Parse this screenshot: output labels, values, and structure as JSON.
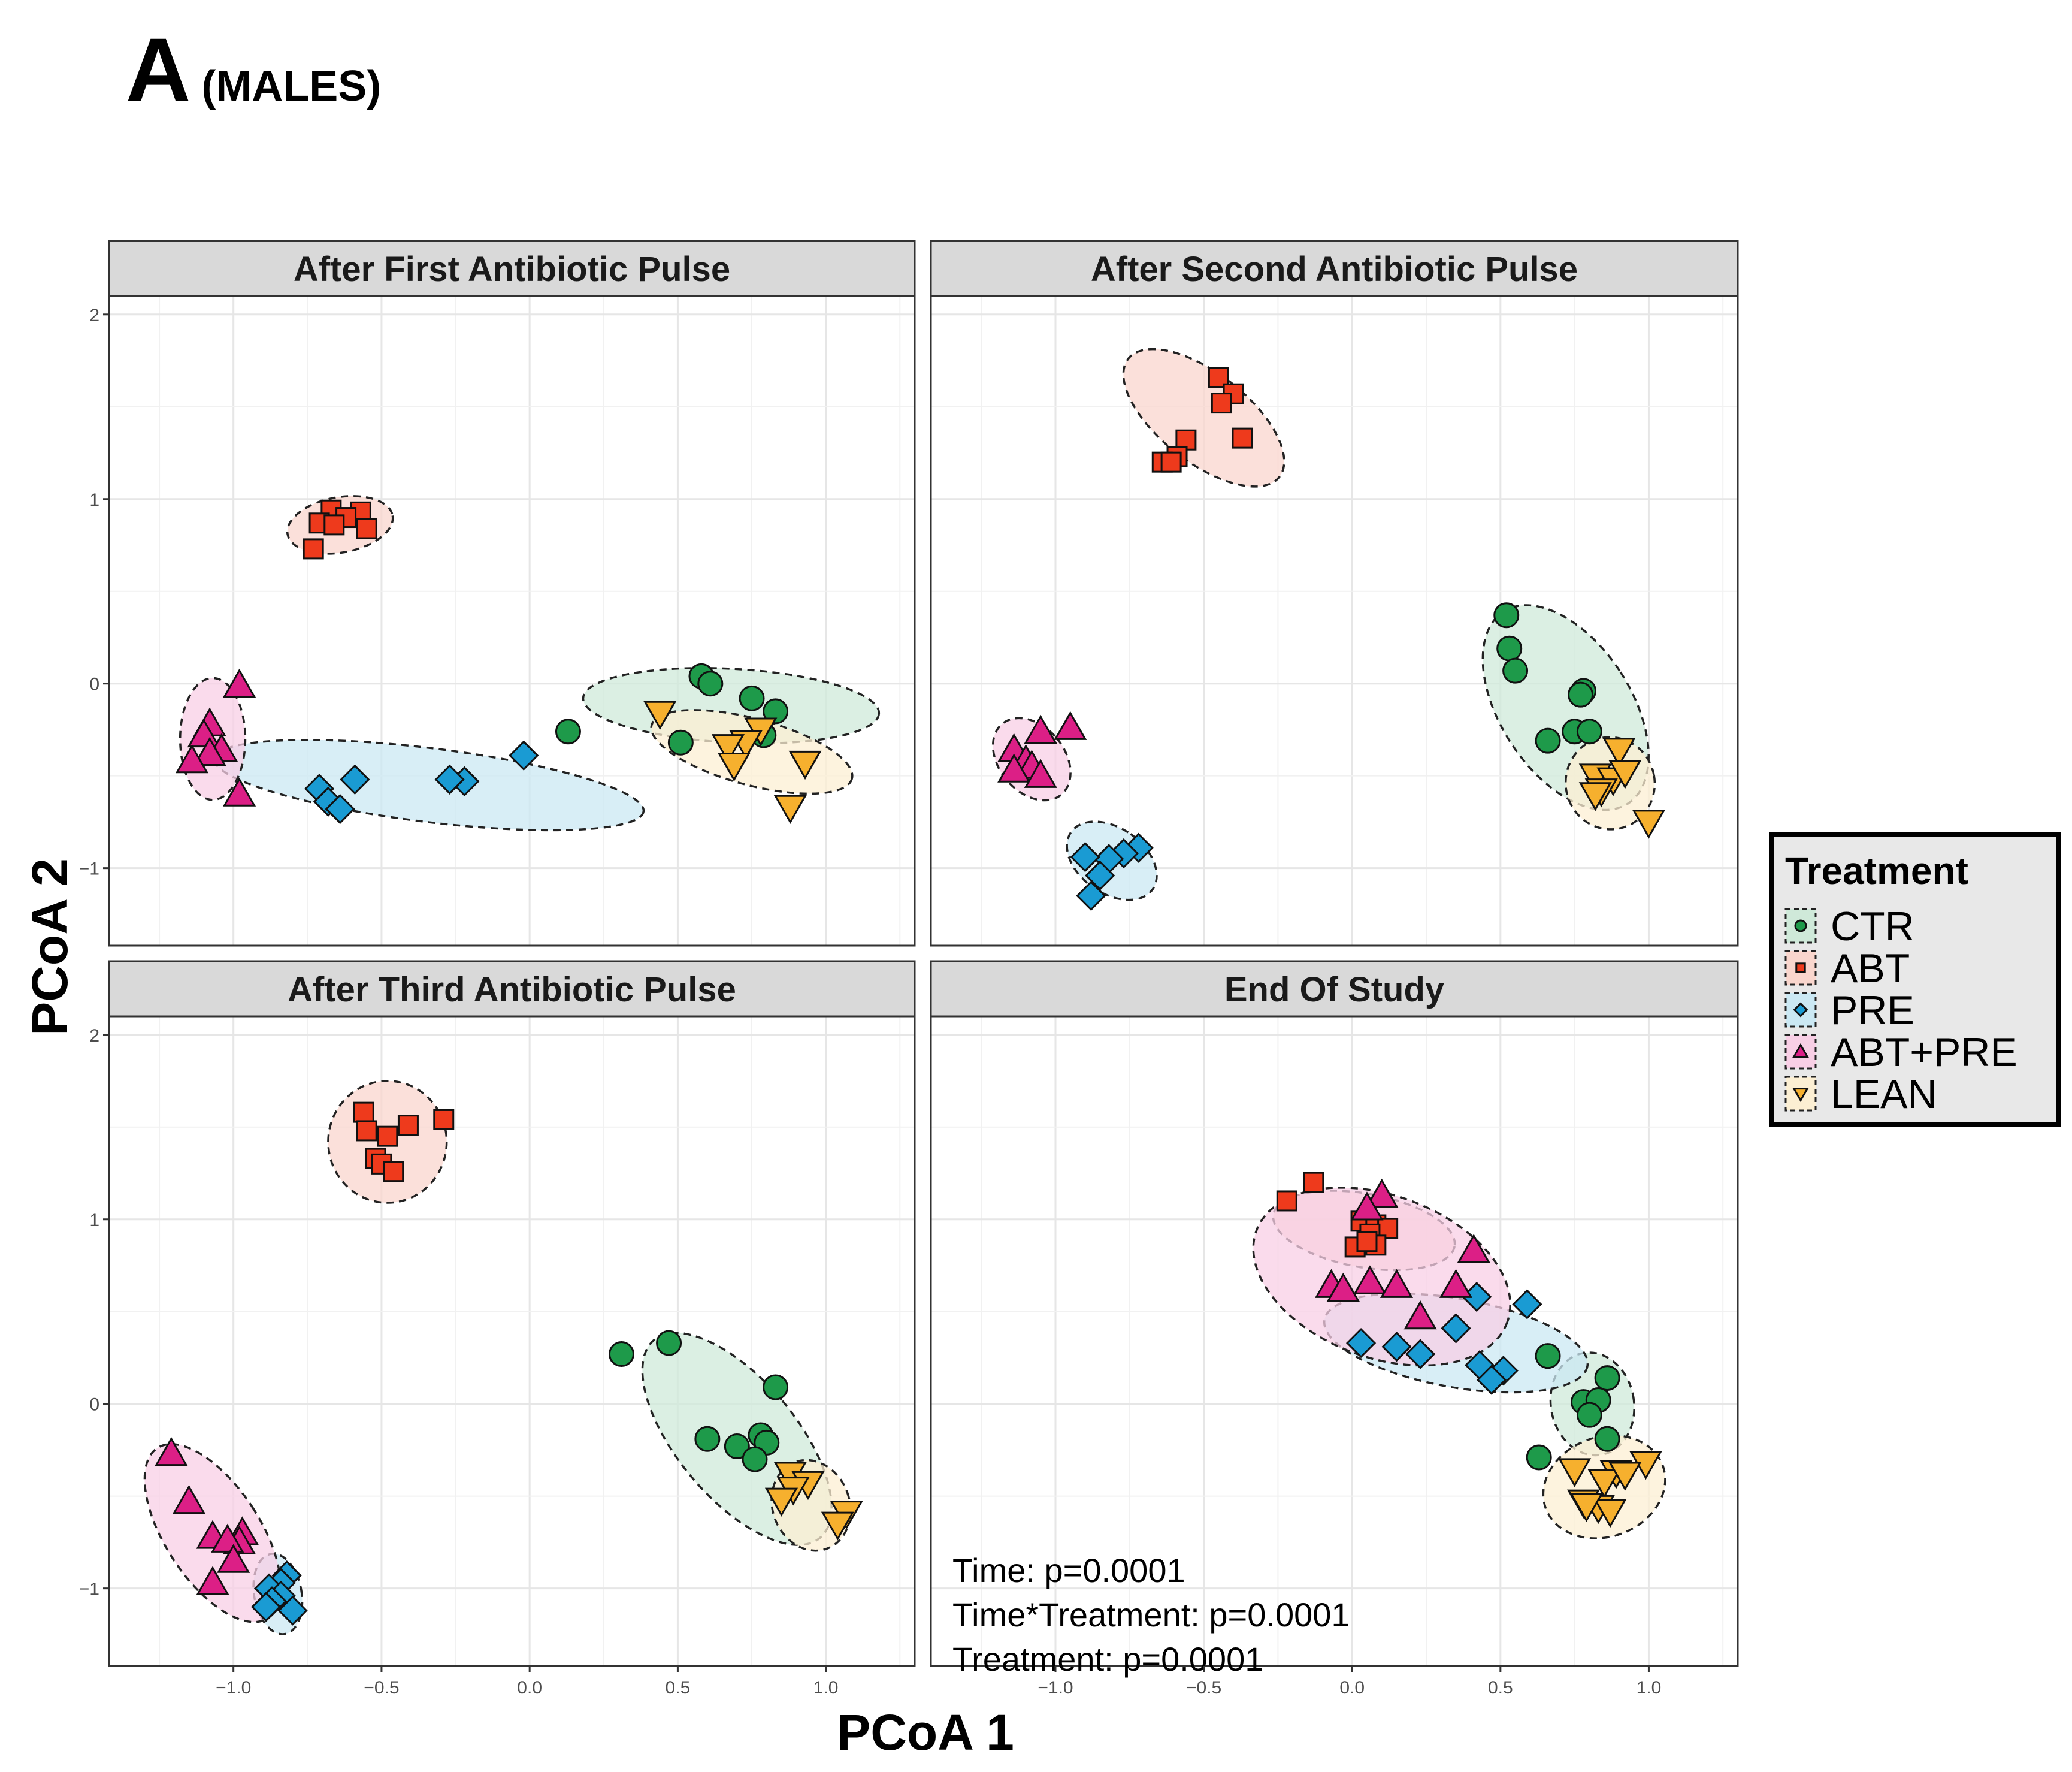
{
  "figure": {
    "panel_letter": "A",
    "panel_subtitle": "(MALES)"
  },
  "chart_data": {
    "type": "scatter",
    "xlabel": "PCoA 1",
    "ylabel": "PCoA 2",
    "xlim": [
      -1.42,
      1.3
    ],
    "ylim": [
      -1.42,
      2.1
    ],
    "x_ticks": [
      -1.0,
      -0.5,
      0.0,
      0.5,
      1.0
    ],
    "x_tick_labels": [
      "−1.0",
      "−0.5",
      "0.0",
      "0.5",
      "1.0"
    ],
    "y_ticks": [
      -1,
      0,
      1,
      2
    ],
    "y_tick_labels": [
      "−1",
      "0",
      "1",
      "2"
    ],
    "grid": true,
    "ellipses": "95% confidence ellipse per group, dashed outline",
    "legend": {
      "title": "Treatment",
      "position": "right",
      "items": [
        {
          "label": "CTR",
          "shape": "circle",
          "fill": "#1e9a4a",
          "ellipse_fill": "#cfe9d9"
        },
        {
          "label": "ABT",
          "shape": "square",
          "fill": "#ee3a1c",
          "ellipse_fill": "#f9d6cd"
        },
        {
          "label": "PRE",
          "shape": "diamond",
          "fill": "#1a9bd3",
          "ellipse_fill": "#cbe8f3"
        },
        {
          "label": "ABT+PRE",
          "shape": "triangle-up",
          "fill": "#dc1f86",
          "ellipse_fill": "#f8cfe5"
        },
        {
          "label": "LEAN",
          "shape": "triangle-down",
          "fill": "#f6b02e",
          "ellipse_fill": "#fcefd3"
        }
      ]
    },
    "facets": [
      {
        "title": "After First Antibiotic Pulse",
        "groups": {
          "CTR": [
            [
              0.58,
              0.04
            ],
            [
              0.61,
              0.0
            ],
            [
              0.75,
              -0.08
            ],
            [
              0.83,
              -0.15
            ],
            [
              0.79,
              -0.28
            ],
            [
              0.13,
              -0.26
            ],
            [
              0.51,
              -0.32
            ]
          ],
          "ABT": [
            [
              -0.67,
              0.94
            ],
            [
              -0.57,
              0.93
            ],
            [
              -0.62,
              0.9
            ],
            [
              -0.71,
              0.87
            ],
            [
              -0.66,
              0.86
            ],
            [
              -0.55,
              0.84
            ],
            [
              -0.73,
              0.73
            ]
          ],
          "PRE": [
            [
              -0.02,
              -0.39
            ],
            [
              -0.22,
              -0.53
            ],
            [
              -0.27,
              -0.52
            ],
            [
              -0.59,
              -0.52
            ],
            [
              -0.71,
              -0.57
            ],
            [
              -0.68,
              -0.64
            ],
            [
              -0.64,
              -0.68
            ]
          ],
          "ABT+PRE": [
            [
              -0.98,
              -0.01
            ],
            [
              -1.08,
              -0.22
            ],
            [
              -1.1,
              -0.28
            ],
            [
              -1.04,
              -0.36
            ],
            [
              -1.08,
              -0.38
            ],
            [
              -1.14,
              -0.42
            ],
            [
              -0.98,
              -0.6
            ]
          ],
          "LEAN": [
            [
              0.44,
              -0.16
            ],
            [
              0.78,
              -0.25
            ],
            [
              0.73,
              -0.32
            ],
            [
              0.67,
              -0.34
            ],
            [
              0.69,
              -0.44
            ],
            [
              0.93,
              -0.43
            ],
            [
              0.88,
              -0.67
            ]
          ]
        },
        "ellipses": {
          "CTR": {
            "cx": 0.68,
            "cy": -0.12,
            "rx": 0.5,
            "ry": 0.2,
            "angle_deg": -3
          },
          "ABT": {
            "cx": -0.64,
            "cy": 0.86,
            "rx": 0.18,
            "ry": 0.15,
            "angle_deg": 10
          },
          "PRE": {
            "cx": -0.34,
            "cy": -0.55,
            "rx": 0.73,
            "ry": 0.2,
            "angle_deg": -7
          },
          "ABT+PRE": {
            "cx": -1.07,
            "cy": -0.3,
            "rx": 0.11,
            "ry": 0.33,
            "angle_deg": 0
          },
          "LEAN": {
            "cx": 0.75,
            "cy": -0.37,
            "rx": 0.35,
            "ry": 0.18,
            "angle_deg": -15
          }
        },
        "annotations": []
      },
      {
        "title": "After Second Antibiotic Pulse",
        "groups": {
          "CTR": [
            [
              0.52,
              0.37
            ],
            [
              0.53,
              0.19
            ],
            [
              0.55,
              0.07
            ],
            [
              0.78,
              -0.04
            ],
            [
              0.77,
              -0.06
            ],
            [
              0.75,
              -0.26
            ],
            [
              0.66,
              -0.31
            ],
            [
              0.8,
              -0.26
            ]
          ],
          "ABT": [
            [
              -0.45,
              1.66
            ],
            [
              -0.4,
              1.57
            ],
            [
              -0.44,
              1.52
            ],
            [
              -0.56,
              1.32
            ],
            [
              -0.59,
              1.23
            ],
            [
              -0.37,
              1.33
            ],
            [
              -0.64,
              1.2
            ],
            [
              -0.61,
              1.2
            ]
          ],
          "PRE": [
            [
              -0.72,
              -0.89
            ],
            [
              -0.77,
              -0.92
            ],
            [
              -0.82,
              -0.95
            ],
            [
              -0.9,
              -0.94
            ],
            [
              -0.85,
              -1.04
            ],
            [
              -0.88,
              -1.15
            ]
          ],
          "ABT+PRE": [
            [
              -0.95,
              -0.24
            ],
            [
              -1.05,
              -0.26
            ],
            [
              -1.14,
              -0.36
            ],
            [
              -1.1,
              -0.42
            ],
            [
              -1.08,
              -0.45
            ],
            [
              -1.14,
              -0.47
            ],
            [
              -1.05,
              -0.5
            ]
          ],
          "LEAN": [
            [
              0.9,
              -0.36
            ],
            [
              0.82,
              -0.5
            ],
            [
              0.88,
              -0.52
            ],
            [
              0.92,
              -0.48
            ],
            [
              0.84,
              -0.58
            ],
            [
              0.82,
              -0.6
            ],
            [
              1.0,
              -0.75
            ]
          ]
        },
        "ellipses": {
          "CTR": {
            "cx": 0.72,
            "cy": -0.13,
            "rx": 0.22,
            "ry": 0.62,
            "angle_deg": 33
          },
          "ABT": {
            "cx": -0.5,
            "cy": 1.44,
            "rx": 0.15,
            "ry": 0.52,
            "angle_deg": 52
          },
          "PRE": {
            "cx": -0.81,
            "cy": -0.96,
            "rx": 0.11,
            "ry": 0.27,
            "angle_deg": 55
          },
          "ABT+PRE": {
            "cx": -1.08,
            "cy": -0.41,
            "rx": 0.11,
            "ry": 0.25,
            "angle_deg": 40
          },
          "LEAN": {
            "cx": 0.87,
            "cy": -0.54,
            "rx": 0.15,
            "ry": 0.25,
            "angle_deg": 10
          }
        },
        "annotations": []
      },
      {
        "title": "After Third Antibiotic Pulse",
        "groups": {
          "CTR": [
            [
              0.47,
              0.33
            ],
            [
              0.31,
              0.27
            ],
            [
              0.83,
              0.09
            ],
            [
              0.6,
              -0.19
            ],
            [
              0.7,
              -0.23
            ],
            [
              0.78,
              -0.17
            ],
            [
              0.8,
              -0.21
            ],
            [
              0.76,
              -0.3
            ]
          ],
          "ABT": [
            [
              -0.29,
              1.54
            ],
            [
              -0.41,
              1.51
            ],
            [
              -0.56,
              1.58
            ],
            [
              -0.55,
              1.48
            ],
            [
              -0.48,
              1.45
            ],
            [
              -0.52,
              1.33
            ],
            [
              -0.5,
              1.3
            ],
            [
              -0.46,
              1.26
            ]
          ],
          "PRE": [
            [
              -0.82,
              -0.93
            ],
            [
              -0.84,
              -0.97
            ],
            [
              -0.88,
              -1.0
            ],
            [
              -0.84,
              -1.04
            ],
            [
              -0.87,
              -1.07
            ],
            [
              -0.8,
              -1.12
            ],
            [
              -0.89,
              -1.1
            ]
          ],
          "ABT+PRE": [
            [
              -1.21,
              -0.27
            ],
            [
              -1.15,
              -0.53
            ],
            [
              -1.07,
              -0.72
            ],
            [
              -0.97,
              -0.7
            ],
            [
              -0.98,
              -0.75
            ],
            [
              -1.02,
              -0.74
            ],
            [
              -1.0,
              -0.85
            ],
            [
              -1.07,
              -0.97
            ]
          ],
          "LEAN": [
            [
              0.88,
              -0.38
            ],
            [
              0.94,
              -0.43
            ],
            [
              0.89,
              -0.46
            ],
            [
              0.85,
              -0.52
            ],
            [
              1.07,
              -0.59
            ],
            [
              1.04,
              -0.65
            ]
          ]
        },
        "ellipses": {
          "CTR": {
            "cx": 0.7,
            "cy": -0.19,
            "rx": 0.2,
            "ry": 0.7,
            "angle_deg": 40
          },
          "ABT": {
            "cx": -0.48,
            "cy": 1.42,
            "rx": 0.2,
            "ry": 0.33,
            "angle_deg": 0
          },
          "PRE": {
            "cx": -0.85,
            "cy": -1.03,
            "rx": 0.08,
            "ry": 0.22,
            "angle_deg": 10
          },
          "ABT+PRE": {
            "cx": -1.07,
            "cy": -0.7,
            "rx": 0.16,
            "ry": 0.55,
            "angle_deg": 33
          },
          "LEAN": {
            "cx": 0.95,
            "cy": -0.55,
            "rx": 0.13,
            "ry": 0.25,
            "angle_deg": 20
          }
        },
        "annotations": []
      },
      {
        "title": "End Of Study",
        "groups": {
          "CTR": [
            [
              0.66,
              0.26
            ],
            [
              0.86,
              0.14
            ],
            [
              0.78,
              0.01
            ],
            [
              0.83,
              0.02
            ],
            [
              0.8,
              -0.06
            ],
            [
              0.86,
              -0.19
            ],
            [
              0.63,
              -0.29
            ]
          ],
          "ABT": [
            [
              -0.13,
              1.2
            ],
            [
              -0.22,
              1.1
            ],
            [
              0.03,
              0.99
            ],
            [
              0.08,
              0.97
            ],
            [
              0.12,
              0.95
            ],
            [
              0.06,
              0.92
            ],
            [
              0.08,
              0.86
            ],
            [
              0.01,
              0.85
            ],
            [
              0.05,
              0.88
            ]
          ],
          "PRE": [
            [
              0.59,
              0.54
            ],
            [
              0.42,
              0.58
            ],
            [
              0.35,
              0.41
            ],
            [
              0.03,
              0.33
            ],
            [
              0.15,
              0.31
            ],
            [
              0.23,
              0.27
            ],
            [
              0.43,
              0.21
            ],
            [
              0.51,
              0.18
            ],
            [
              0.47,
              0.13
            ]
          ],
          "ABT+PRE": [
            [
              0.1,
              1.13
            ],
            [
              0.05,
              1.06
            ],
            [
              0.41,
              0.83
            ],
            [
              -0.07,
              0.64
            ],
            [
              -0.03,
              0.62
            ],
            [
              0.06,
              0.66
            ],
            [
              0.15,
              0.64
            ],
            [
              0.35,
              0.64
            ],
            [
              0.23,
              0.47
            ]
          ],
          "LEAN": [
            [
              0.99,
              -0.32
            ],
            [
              0.75,
              -0.36
            ],
            [
              0.89,
              -0.37
            ],
            [
              0.85,
              -0.42
            ],
            [
              0.92,
              -0.38
            ],
            [
              0.78,
              -0.53
            ],
            [
              0.83,
              -0.56
            ],
            [
              0.87,
              -0.58
            ],
            [
              0.79,
              -0.55
            ]
          ]
        },
        "ellipses": {
          "CTR": {
            "cx": 0.81,
            "cy": 0.0,
            "rx": 0.14,
            "ry": 0.28,
            "angle_deg": 10
          },
          "ABT": {
            "cx": 0.04,
            "cy": 0.94,
            "rx": 0.31,
            "ry": 0.2,
            "angle_deg": -10
          },
          "PRE": {
            "cx": 0.35,
            "cy": 0.33,
            "rx": 0.45,
            "ry": 0.24,
            "angle_deg": -10
          },
          "ABT+PRE": {
            "cx": 0.1,
            "cy": 0.69,
            "rx": 0.45,
            "ry": 0.44,
            "angle_deg": -20
          },
          "LEAN": {
            "cx": 0.85,
            "cy": -0.45,
            "rx": 0.21,
            "ry": 0.27,
            "angle_deg": 20
          }
        },
        "annotations": [
          "Time: p=0.0001",
          "Time*Treatment: p=0.0001",
          "Treatment: p=0.0001"
        ]
      }
    ]
  }
}
